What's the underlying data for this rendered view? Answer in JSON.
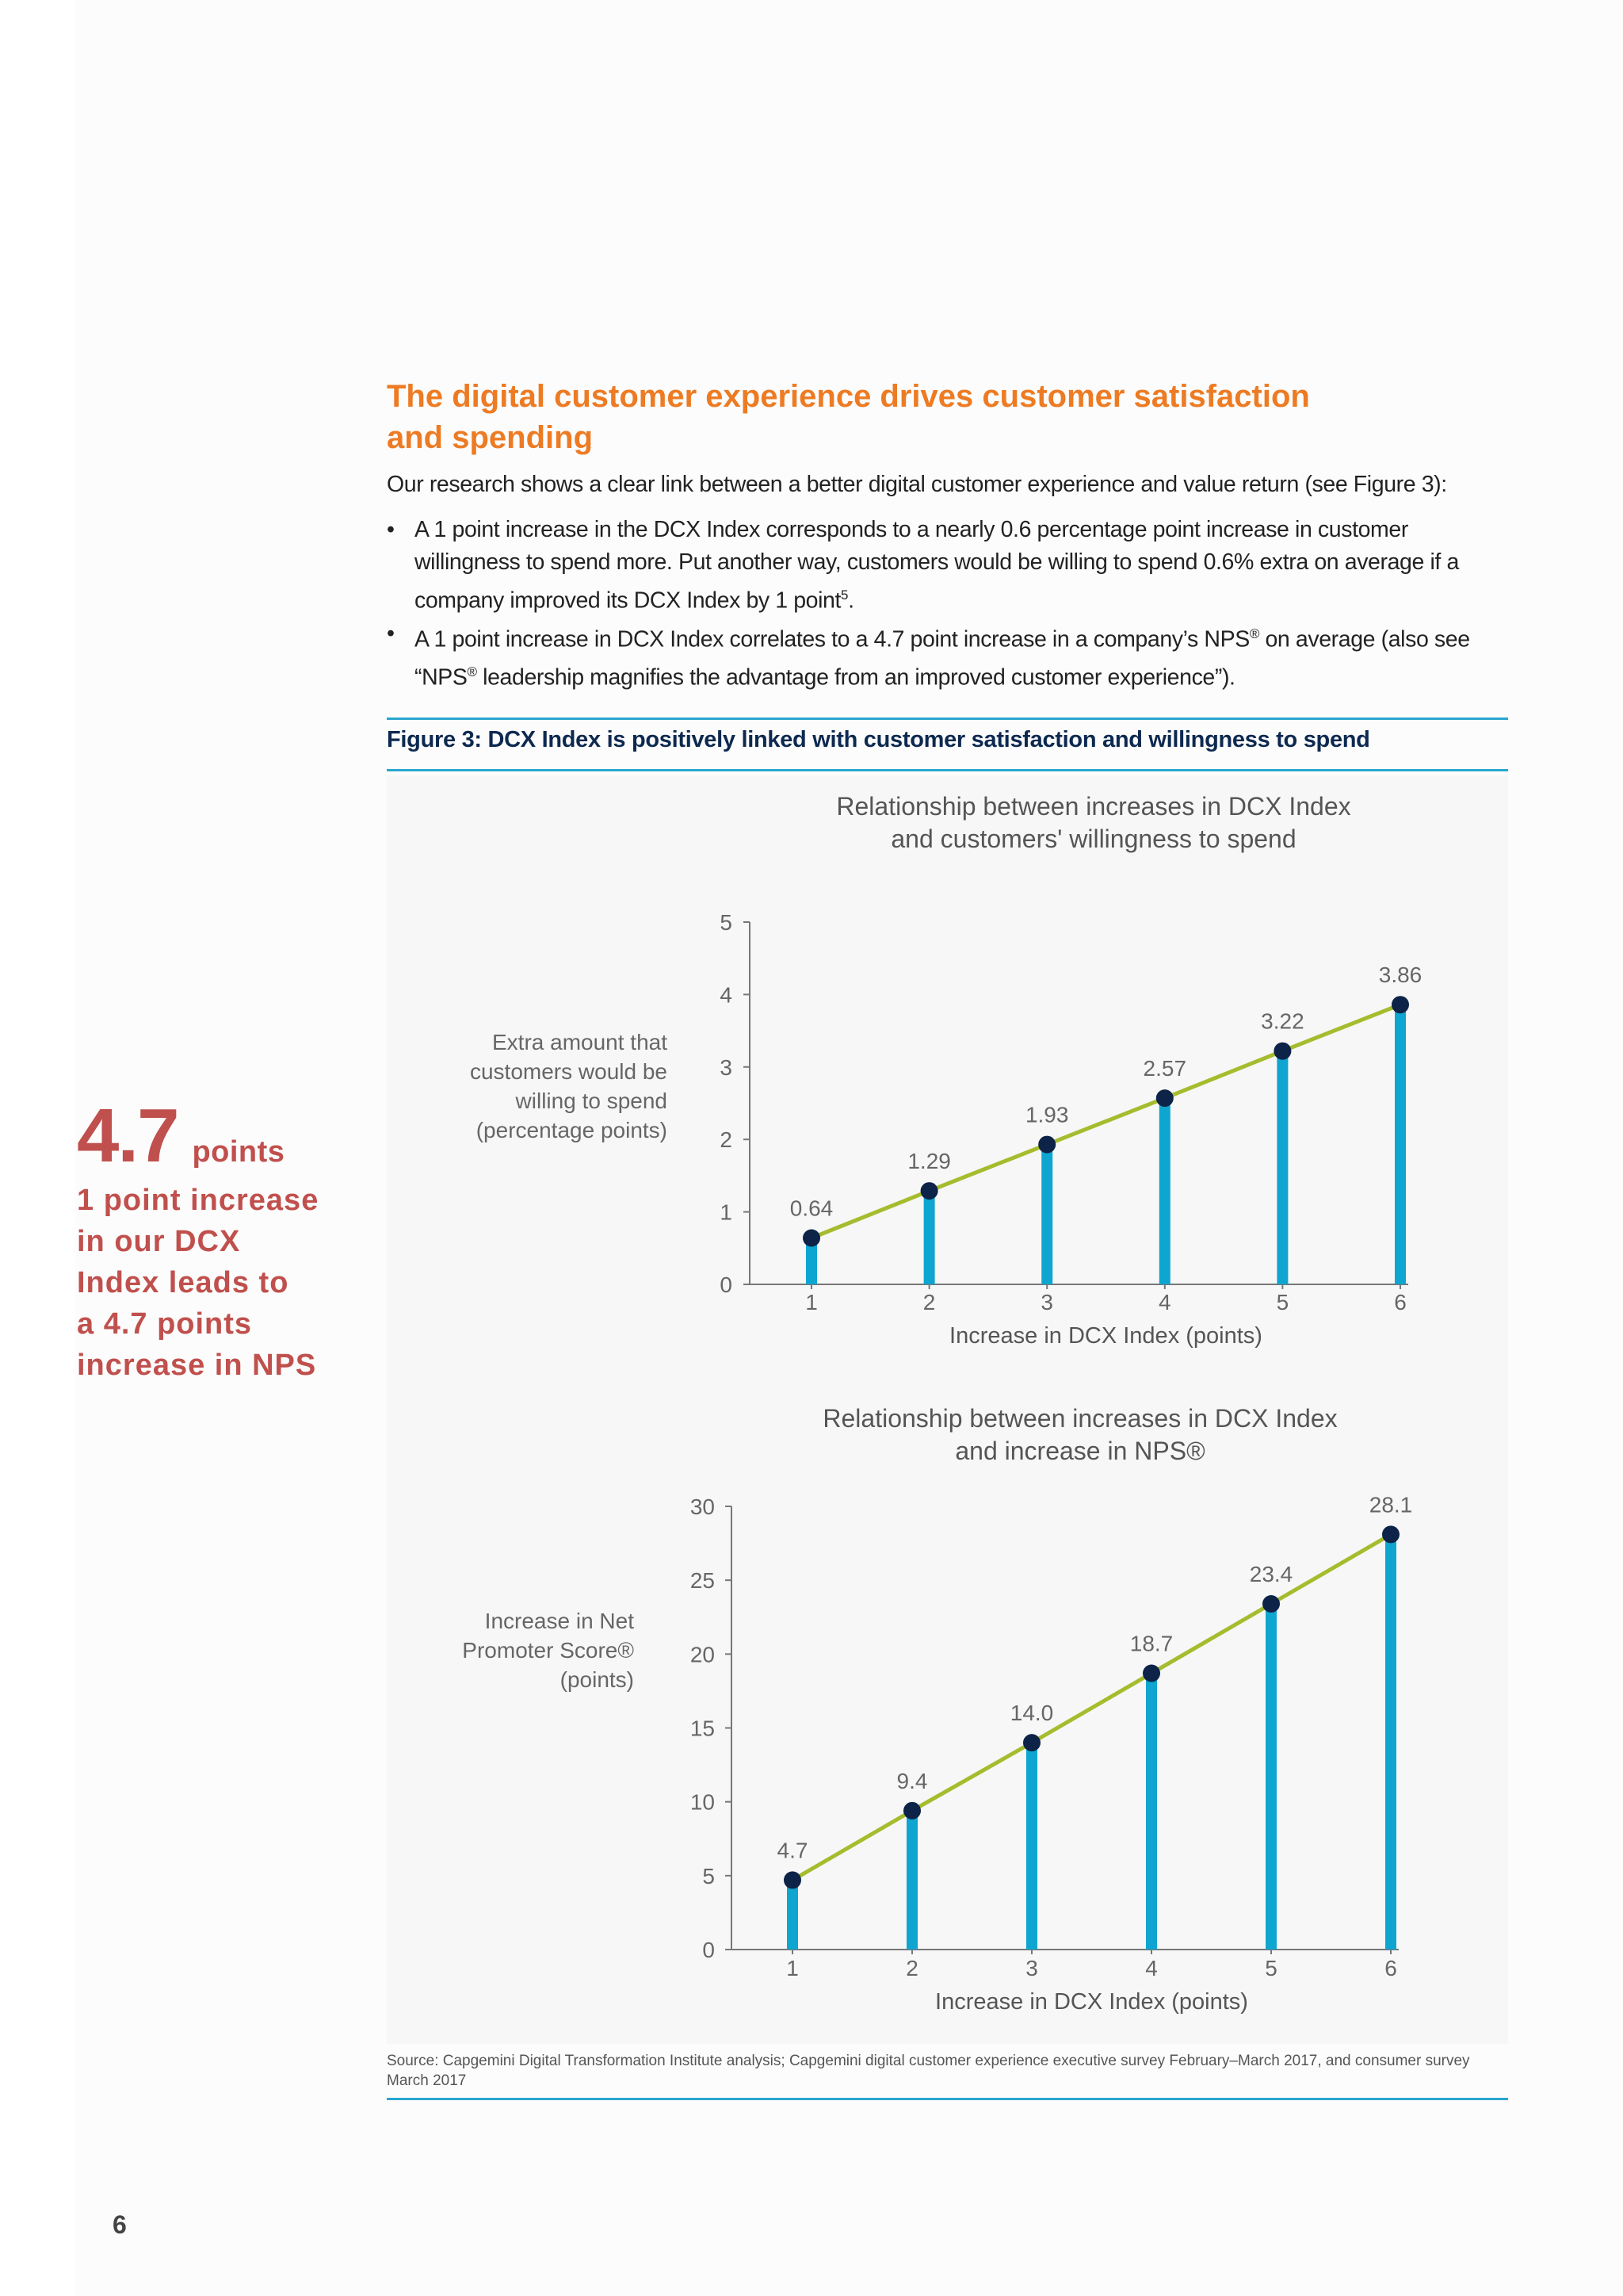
{
  "heading": {
    "line1": "The digital customer experience drives customer satisfaction",
    "line2": "and spending"
  },
  "intro": "Our research shows a clear link between a better digital customer experience and value return (see Figure 3):",
  "bullets": [
    {
      "text": "A 1 point increase in the DCX Index corresponds to a nearly 0.6 percentage point increase in customer willingness to spend more. Put another way, customers would be willing to spend 0.6% extra on average if a company improved its DCX Index by 1 point",
      "sup": "5",
      "tail": "."
    },
    {
      "text_a": "A 1 point increase in DCX Index correlates to a 4.7 point increase in a company’s NPS",
      "sup_a": "®",
      "text_b": " on average (also see “NPS",
      "sup_b": "®",
      "text_c": " leadership magnifies the advantage from an improved customer experience”)."
    }
  ],
  "figure_caption": "Figure 3: DCX Index is positively linked with customer satisfaction and willingness to spend",
  "callout": {
    "big": "4.7",
    "unit": "points",
    "lines": [
      "1 point increase",
      "in our DCX",
      "Index leads to",
      "a 4.7 points",
      "increase in NPS"
    ]
  },
  "source": "Source: Capgemini Digital Transformation Institute analysis; Capgemini digital customer experience executive survey February–March 2017, and consumer survey March 2017",
  "page_number": "6",
  "colors": {
    "bar": "#0ea5d0",
    "line": "#a6bc2e",
    "point": "#0d2348",
    "heading": "#ed7b23",
    "callout": "#c0504d",
    "rule": "#2aa6cf"
  },
  "chart_data": [
    {
      "type": "line",
      "title_lines": [
        "Relationship between increases in DCX Index",
        "and customers' willingness to spend"
      ],
      "xlabel": "Increase in DCX Index (points)",
      "ylabel_lines": [
        "Extra amount that",
        "customers would be",
        "willing to spend",
        "(percentage points)"
      ],
      "x": [
        1,
        2,
        3,
        4,
        5,
        6
      ],
      "values": [
        0.64,
        1.29,
        1.93,
        2.57,
        3.22,
        3.86
      ],
      "value_labels": [
        "0.64",
        "1.29",
        "1.93",
        "2.57",
        "3.22",
        "3.86"
      ],
      "yticks": [
        0,
        1,
        2,
        3,
        4,
        5
      ],
      "ylim": [
        0,
        5
      ],
      "grid": false,
      "legend": "none"
    },
    {
      "type": "line",
      "title_lines": [
        "Relationship between increases in DCX Index",
        "and increase in NPS®"
      ],
      "xlabel": "Increase in DCX Index (points)",
      "ylabel_lines": [
        "Increase in Net",
        "Promoter Score®",
        "(points)"
      ],
      "x": [
        1,
        2,
        3,
        4,
        5,
        6
      ],
      "values": [
        4.7,
        9.4,
        14.0,
        18.7,
        23.4,
        28.1
      ],
      "value_labels": [
        "4.7",
        "9.4",
        "14.0",
        "18.7",
        "23.4",
        "28.1"
      ],
      "yticks": [
        0,
        5,
        10,
        15,
        20,
        25,
        30
      ],
      "ylim": [
        0,
        30
      ],
      "grid": false,
      "legend": "none"
    }
  ]
}
